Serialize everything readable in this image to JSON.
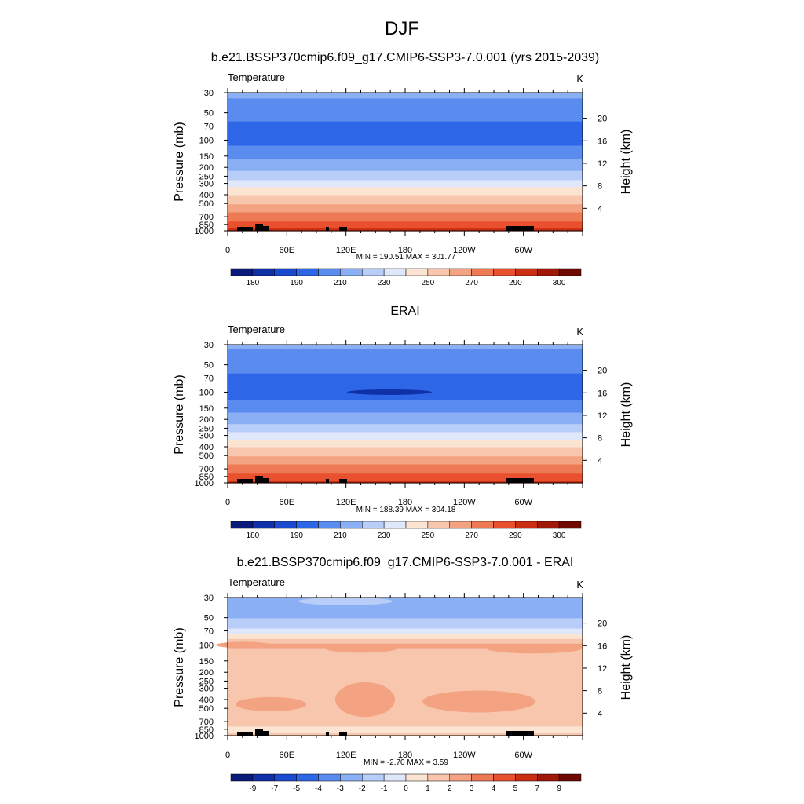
{
  "main_title": "DJF",
  "panels": [
    {
      "title": "b.e21.BSSP370cmip6.f09_g17.CMIP6-SSP3-7.0.001 (yrs 2015-2039)",
      "variable_label": "Temperature",
      "units_label": "K",
      "stats": "MIN = 190.51  MAX = 301.77",
      "colorbar_labels": [
        "180",
        "190",
        "210",
        "230",
        "250",
        "270",
        "290",
        "300"
      ]
    },
    {
      "title": "ERAI",
      "variable_label": "Temperature",
      "units_label": "K",
      "stats": "MIN = 188.39  MAX = 304.18",
      "colorbar_labels": [
        "180",
        "190",
        "210",
        "230",
        "250",
        "270",
        "290",
        "300"
      ]
    },
    {
      "title": "b.e21.BSSP370cmip6.f09_g17.CMIP6-SSP3-7.0.001 - ERAI",
      "variable_label": "Temperature",
      "units_label": "K",
      "stats": "MIN =  -2.70  MAX =   3.59",
      "colorbar_labels": [
        "-9",
        "-7",
        "-5",
        "-4",
        "-3",
        "-2",
        "-1",
        "0",
        "1",
        "2",
        "3",
        "4",
        "5",
        "7",
        "9"
      ]
    }
  ],
  "chart_data": [
    {
      "type": "heatmap",
      "title": "b.e21.BSSP370cmip6.f09_g17.CMIP6-SSP3-7.0.001 (yrs 2015-2039)",
      "variable": "Temperature",
      "units": "K",
      "xlabel": "",
      "ylabel": "Pressure (mb)",
      "ylabel_right": "Height (km)",
      "x_ticks": [
        "0",
        "60E",
        "120E",
        "180",
        "120W",
        "60W"
      ],
      "x_tick_values": [
        0,
        60,
        120,
        180,
        240,
        300
      ],
      "xlim": [
        0,
        360
      ],
      "y_ticks": [
        30,
        50,
        70,
        100,
        150,
        200,
        250,
        300,
        400,
        500,
        700,
        850,
        1000
      ],
      "ylim": [
        1000,
        30
      ],
      "y_scale": "log",
      "y_ticks_right": [
        4,
        8,
        12,
        16,
        20
      ],
      "levels": [
        180,
        185,
        190,
        200,
        210,
        220,
        230,
        240,
        250,
        260,
        270,
        280,
        290,
        295,
        300
      ],
      "min": 190.51,
      "max": 301.77,
      "profile": [
        {
          "p": 30,
          "v": 212
        },
        {
          "p": 40,
          "v": 208
        },
        {
          "p": 50,
          "v": 203
        },
        {
          "p": 70,
          "v": 198
        },
        {
          "p": 100,
          "v": 197
        },
        {
          "p": 130,
          "v": 203
        },
        {
          "p": 150,
          "v": 208
        },
        {
          "p": 200,
          "v": 216
        },
        {
          "p": 250,
          "v": 226
        },
        {
          "p": 300,
          "v": 236
        },
        {
          "p": 400,
          "v": 250
        },
        {
          "p": 500,
          "v": 260
        },
        {
          "p": 700,
          "v": 275
        },
        {
          "p": 850,
          "v": 285
        },
        {
          "p": 1000,
          "v": 295
        }
      ]
    },
    {
      "type": "heatmap",
      "title": "ERAI",
      "variable": "Temperature",
      "units": "K",
      "xlabel": "",
      "ylabel": "Pressure (mb)",
      "ylabel_right": "Height (km)",
      "x_ticks": [
        "0",
        "60E",
        "120E",
        "180",
        "120W",
        "60W"
      ],
      "x_tick_values": [
        0,
        60,
        120,
        180,
        240,
        300
      ],
      "xlim": [
        0,
        360
      ],
      "y_ticks": [
        30,
        50,
        70,
        100,
        150,
        200,
        250,
        300,
        400,
        500,
        700,
        850,
        1000
      ],
      "ylim": [
        1000,
        30
      ],
      "y_scale": "log",
      "y_ticks_right": [
        4,
        8,
        12,
        16,
        20
      ],
      "levels": [
        180,
        185,
        190,
        200,
        210,
        220,
        230,
        240,
        250,
        260,
        270,
        280,
        290,
        295,
        300
      ],
      "min": 188.39,
      "max": 304.18,
      "profile": [
        {
          "p": 30,
          "v": 212
        },
        {
          "p": 40,
          "v": 207
        },
        {
          "p": 50,
          "v": 203
        },
        {
          "p": 70,
          "v": 198
        },
        {
          "p": 100,
          "v": 196
        },
        {
          "p": 130,
          "v": 202
        },
        {
          "p": 150,
          "v": 207
        },
        {
          "p": 200,
          "v": 215
        },
        {
          "p": 250,
          "v": 225
        },
        {
          "p": 300,
          "v": 235
        },
        {
          "p": 400,
          "v": 250
        },
        {
          "p": 500,
          "v": 260
        },
        {
          "p": 700,
          "v": 275
        },
        {
          "p": 850,
          "v": 285
        },
        {
          "p": 1000,
          "v": 295
        }
      ]
    },
    {
      "type": "heatmap",
      "title": "b.e21.BSSP370cmip6.f09_g17.CMIP6-SSP3-7.0.001 - ERAI",
      "variable": "Temperature",
      "units": "K",
      "xlabel": "",
      "ylabel": "Pressure (mb)",
      "ylabel_right": "Height (km)",
      "x_ticks": [
        "0",
        "60E",
        "120E",
        "180",
        "120W",
        "60W"
      ],
      "x_tick_values": [
        0,
        60,
        120,
        180,
        240,
        300
      ],
      "xlim": [
        0,
        360
      ],
      "y_ticks": [
        30,
        50,
        70,
        100,
        150,
        200,
        250,
        300,
        400,
        500,
        700,
        850,
        1000
      ],
      "ylim": [
        1000,
        30
      ],
      "y_scale": "log",
      "y_ticks_right": [
        4,
        8,
        12,
        16,
        20
      ],
      "levels": [
        -9,
        -7,
        -5,
        -4,
        -3,
        -2,
        -1,
        0,
        1,
        2,
        3,
        4,
        5,
        7,
        9
      ],
      "min": -2.7,
      "max": 3.59,
      "profile": [
        {
          "p": 30,
          "v": -2.5
        },
        {
          "p": 45,
          "v": -2.3
        },
        {
          "p": 60,
          "v": -1.5
        },
        {
          "p": 70,
          "v": -0.5
        },
        {
          "p": 80,
          "v": 0.5
        },
        {
          "p": 90,
          "v": 1.5
        },
        {
          "p": 100,
          "v": 2.3
        },
        {
          "p": 120,
          "v": 1.5
        },
        {
          "p": 150,
          "v": 1.4
        },
        {
          "p": 300,
          "v": 1.5
        },
        {
          "p": 400,
          "v": 1.5
        },
        {
          "p": 700,
          "v": 1.5
        },
        {
          "p": 850,
          "v": 0.7
        },
        {
          "p": 1000,
          "v": 1.2
        }
      ]
    }
  ]
}
